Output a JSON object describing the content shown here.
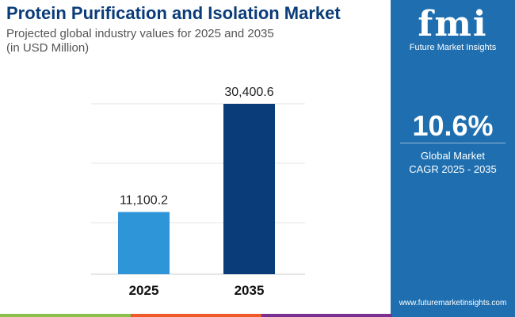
{
  "header": {
    "title": "Protein Purification and Isolation Market",
    "subtitle_line1": "Projected global industry values for 2025 and 2035",
    "subtitle_line2": "(in USD Million)"
  },
  "sidebar": {
    "logo_text": "fmi",
    "brand": "Future Market Insights",
    "cagr_value": "10.6%",
    "cagr_label_line1": "Global Market",
    "cagr_label_line2": "CAGR 2025 - 2035",
    "website": "www.futuremarketinsights.com"
  },
  "colors": {
    "bar_2025": "#2e95d8",
    "bar_2035": "#0b3c7a",
    "panel": "#1f6fb0",
    "strip": [
      "#8cc04b",
      "#ee5a2a",
      "#7b2f8e",
      "#1f6fb0"
    ]
  },
  "chart_data": {
    "type": "bar",
    "categories": [
      "2025",
      "2035"
    ],
    "values": [
      11100.2,
      30400.6
    ],
    "value_labels": [
      "11,100.2",
      "30,400.6"
    ],
    "title": "Protein Purification and Isolation Market",
    "ylabel": "USD Million",
    "grid": true,
    "legend": "none"
  }
}
